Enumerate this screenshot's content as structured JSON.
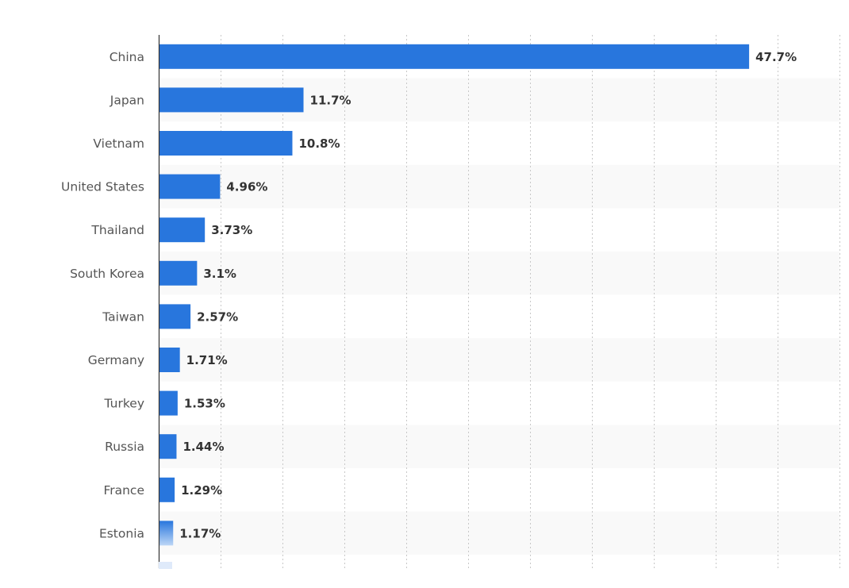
{
  "chart_data": {
    "type": "bar",
    "orientation": "horizontal",
    "categories": [
      "China",
      "Japan",
      "Vietnam",
      "United States",
      "Thailand",
      "South Korea",
      "Taiwan",
      "Germany",
      "Turkey",
      "Russia",
      "France",
      "Estonia"
    ],
    "values": [
      47.7,
      11.7,
      10.8,
      4.96,
      3.73,
      3.1,
      2.57,
      1.71,
      1.53,
      1.44,
      1.29,
      1.17
    ],
    "value_labels": [
      "47.7%",
      "11.7%",
      "10.8%",
      "4.96%",
      "3.73%",
      "3.1%",
      "2.57%",
      "1.71%",
      "1.53%",
      "1.44%",
      "1.29%",
      "1.17%"
    ],
    "xlim": [
      0,
      55
    ],
    "grid": true,
    "bar_color": "#2876dd",
    "stripe_color": "#f9f9f9"
  }
}
